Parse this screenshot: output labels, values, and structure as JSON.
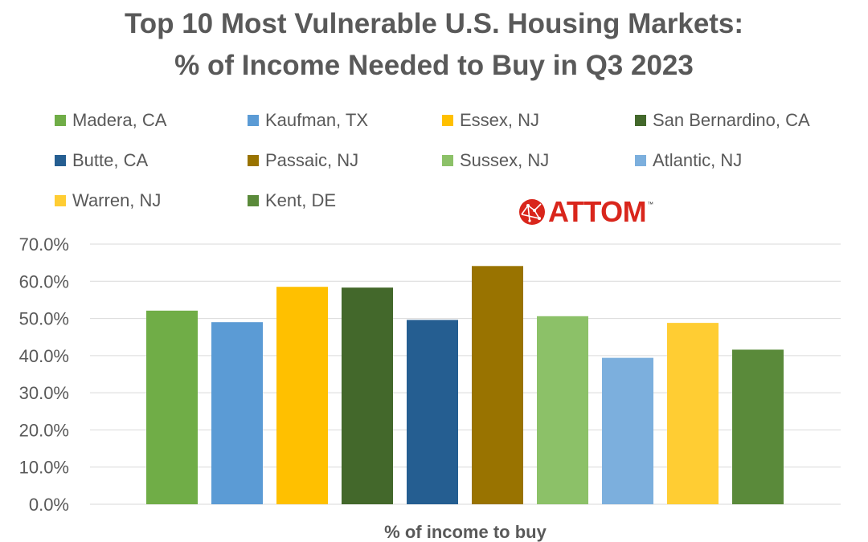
{
  "chart_data": {
    "type": "bar",
    "title_line1": "Top 10 Most Vulnerable U.S. Housing Markets:",
    "title_line2": "% of Income Needed to Buy in Q3 2023",
    "xlabel": "% of income to buy",
    "ylabel": "",
    "ylim": [
      0,
      70
    ],
    "yticks": [
      "0.0%",
      "10.0%",
      "20.0%",
      "30.0%",
      "40.0%",
      "50.0%",
      "60.0%",
      "70.0%"
    ],
    "grid": true,
    "legend_position": "top",
    "series": [
      {
        "name": "Madera, CA",
        "value": 52.1,
        "color": "#70ad47"
      },
      {
        "name": "Kaufman, TX",
        "value": 49.0,
        "color": "#5b9bd5"
      },
      {
        "name": "Essex, NJ",
        "value": 58.5,
        "color": "#ffc000"
      },
      {
        "name": "San Bernardino, CA",
        "value": 58.3,
        "color": "#43682b"
      },
      {
        "name": "Butte, CA",
        "value": 49.6,
        "color": "#255e91"
      },
      {
        "name": "Passaic, NJ",
        "value": 64.1,
        "color": "#997300"
      },
      {
        "name": "Sussex, NJ",
        "value": 50.6,
        "color": "#8cc168"
      },
      {
        "name": "Atlantic, NJ",
        "value": 39.4,
        "color": "#7cafdd"
      },
      {
        "name": "Warren, NJ",
        "value": 48.8,
        "color": "#ffcd33"
      },
      {
        "name": "Kent, DE",
        "value": 41.6,
        "color": "#5a8a3a"
      }
    ]
  },
  "logo": {
    "text": "ATTOM",
    "tm": "™",
    "color": "#d9261c"
  }
}
